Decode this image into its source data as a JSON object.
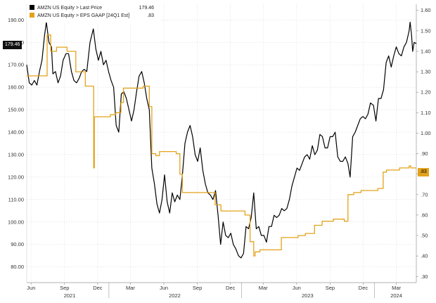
{
  "chart_data": {
    "type": "line",
    "legend": [
      {
        "label": "AMZN US Equity > Last Price",
        "value": "179.46",
        "color": "#000000"
      },
      {
        "label": "AMZN US Equity > EPS GAAP [24Q1 Est]",
        "value": ".83",
        "color": "#e3a21a"
      }
    ],
    "left_axis": {
      "range": [
        73,
        197
      ],
      "ticks": [
        "190.00",
        "180.00",
        "170.00",
        "160.00",
        "150.00",
        "140.00",
        "130.00",
        "120.00",
        "110.00",
        "100.00",
        "90.00",
        "80.00"
      ],
      "tick_values": [
        190,
        180,
        170,
        160,
        150,
        140,
        130,
        120,
        110,
        100,
        90,
        80
      ],
      "last_value_badge": "179.46"
    },
    "right_axis": {
      "range": [
        0.27,
        1.63
      ],
      "ticks": [
        "1.60",
        "1.50",
        "1.40",
        "1.30",
        "1.20",
        "1.10",
        "1.00",
        ".90",
        ".80",
        ".70",
        ".60",
        ".50",
        ".40",
        ".30"
      ],
      "tick_values": [
        1.6,
        1.5,
        1.4,
        1.3,
        1.2,
        1.1,
        1.0,
        0.9,
        0.8,
        0.7,
        0.6,
        0.5,
        0.4,
        0.3
      ],
      "last_value_badge": ".83"
    },
    "x_axis": {
      "range": [
        "2021-05-20",
        "2024-04-25"
      ],
      "month_ticks": [
        {
          "label": "Jun",
          "date": "2021-06-01"
        },
        {
          "label": "Sep",
          "date": "2021-09-01"
        },
        {
          "label": "Dec",
          "date": "2021-12-01"
        },
        {
          "label": "Mar",
          "date": "2022-03-01"
        },
        {
          "label": "Jun",
          "date": "2022-06-01"
        },
        {
          "label": "Sep",
          "date": "2022-09-01"
        },
        {
          "label": "Dec",
          "date": "2022-12-01"
        },
        {
          "label": "Mar",
          "date": "2023-03-01"
        },
        {
          "label": "Jun",
          "date": "2023-06-01"
        },
        {
          "label": "Sep",
          "date": "2023-09-01"
        },
        {
          "label": "Dec",
          "date": "2023-12-01"
        },
        {
          "label": "Mar",
          "date": "2024-03-01"
        }
      ],
      "year_labels": [
        {
          "label": "2021",
          "date": "2021-09-15"
        },
        {
          "label": "2022",
          "date": "2022-07-01"
        },
        {
          "label": "2023",
          "date": "2023-07-01"
        },
        {
          "label": "2024",
          "date": "2024-03-01"
        }
      ],
      "year_boundaries": [
        "2022-01-01",
        "2023-01-01",
        "2024-01-01"
      ]
    },
    "grid": true,
    "series": [
      {
        "name": "AMZN US Equity > Last Price",
        "axis": "left",
        "color": "#000000",
        "points": [
          [
            "2021-05-20",
            170
          ],
          [
            "2021-05-27",
            162
          ],
          [
            "2021-06-03",
            161
          ],
          [
            "2021-06-10",
            163
          ],
          [
            "2021-06-17",
            161
          ],
          [
            "2021-06-24",
            167
          ],
          [
            "2021-07-01",
            172
          ],
          [
            "2021-07-08",
            183
          ],
          [
            "2021-07-13",
            189
          ],
          [
            "2021-07-20",
            180
          ],
          [
            "2021-07-27",
            178
          ],
          [
            "2021-07-31",
            166
          ],
          [
            "2021-08-07",
            167
          ],
          [
            "2021-08-14",
            162
          ],
          [
            "2021-08-21",
            165
          ],
          [
            "2021-08-28",
            172
          ],
          [
            "2021-09-05",
            175
          ],
          [
            "2021-09-12",
            175
          ],
          [
            "2021-09-20",
            167
          ],
          [
            "2021-09-27",
            163
          ],
          [
            "2021-10-04",
            162
          ],
          [
            "2021-10-11",
            164
          ],
          [
            "2021-10-18",
            167
          ],
          [
            "2021-10-25",
            168
          ],
          [
            "2021-11-01",
            167
          ],
          [
            "2021-11-10",
            180
          ],
          [
            "2021-11-19",
            186
          ],
          [
            "2021-11-26",
            177
          ],
          [
            "2021-12-03",
            172
          ],
          [
            "2021-12-10",
            176
          ],
          [
            "2021-12-17",
            170
          ],
          [
            "2021-12-24",
            172
          ],
          [
            "2021-12-31",
            167
          ],
          [
            "2022-01-07",
            163
          ],
          [
            "2022-01-14",
            160
          ],
          [
            "2022-01-21",
            143
          ],
          [
            "2022-01-28",
            140
          ],
          [
            "2022-02-04",
            157
          ],
          [
            "2022-02-11",
            158
          ],
          [
            "2022-02-18",
            155
          ],
          [
            "2022-02-25",
            150
          ],
          [
            "2022-03-04",
            145
          ],
          [
            "2022-03-11",
            150
          ],
          [
            "2022-03-18",
            158
          ],
          [
            "2022-03-25",
            165
          ],
          [
            "2022-04-01",
            167
          ],
          [
            "2022-04-08",
            162
          ],
          [
            "2022-04-15",
            155
          ],
          [
            "2022-04-22",
            150
          ],
          [
            "2022-04-29",
            124
          ],
          [
            "2022-05-06",
            117
          ],
          [
            "2022-05-13",
            108
          ],
          [
            "2022-05-20",
            104
          ],
          [
            "2022-05-27",
            110
          ],
          [
            "2022-06-03",
            121
          ],
          [
            "2022-06-10",
            109
          ],
          [
            "2022-06-17",
            104
          ],
          [
            "2022-06-24",
            113
          ],
          [
            "2022-07-01",
            109
          ],
          [
            "2022-07-08",
            112
          ],
          [
            "2022-07-15",
            110
          ],
          [
            "2022-07-22",
            121
          ],
          [
            "2022-07-29",
            135
          ],
          [
            "2022-08-05",
            140
          ],
          [
            "2022-08-12",
            143
          ],
          [
            "2022-08-19",
            138
          ],
          [
            "2022-08-26",
            130
          ],
          [
            "2022-09-02",
            127
          ],
          [
            "2022-09-09",
            133
          ],
          [
            "2022-09-16",
            123
          ],
          [
            "2022-09-23",
            117
          ],
          [
            "2022-09-30",
            113
          ],
          [
            "2022-10-07",
            112
          ],
          [
            "2022-10-14",
            110
          ],
          [
            "2022-10-21",
            114
          ],
          [
            "2022-10-28",
            103
          ],
          [
            "2022-11-04",
            90
          ],
          [
            "2022-11-11",
            100
          ],
          [
            "2022-11-18",
            94
          ],
          [
            "2022-11-25",
            93
          ],
          [
            "2022-12-02",
            95
          ],
          [
            "2022-12-09",
            90
          ],
          [
            "2022-12-16",
            88
          ],
          [
            "2022-12-23",
            85
          ],
          [
            "2022-12-30",
            84
          ],
          [
            "2023-01-06",
            86
          ],
          [
            "2023-01-13",
            98
          ],
          [
            "2023-01-20",
            97
          ],
          [
            "2023-01-27",
            102
          ],
          [
            "2023-02-03",
            113
          ],
          [
            "2023-02-10",
            97
          ],
          [
            "2023-02-17",
            98
          ],
          [
            "2023-02-24",
            94
          ],
          [
            "2023-03-03",
            94
          ],
          [
            "2023-03-10",
            91
          ],
          [
            "2023-03-17",
            98
          ],
          [
            "2023-03-24",
            98
          ],
          [
            "2023-03-31",
            103
          ],
          [
            "2023-04-07",
            102
          ],
          [
            "2023-04-14",
            103
          ],
          [
            "2023-04-21",
            106
          ],
          [
            "2023-04-28",
            105
          ],
          [
            "2023-05-05",
            106
          ],
          [
            "2023-05-12",
            110
          ],
          [
            "2023-05-19",
            116
          ],
          [
            "2023-05-26",
            120
          ],
          [
            "2023-06-02",
            124
          ],
          [
            "2023-06-09",
            123
          ],
          [
            "2023-06-16",
            126
          ],
          [
            "2023-06-23",
            129
          ],
          [
            "2023-06-30",
            130
          ],
          [
            "2023-07-07",
            128
          ],
          [
            "2023-07-14",
            134
          ],
          [
            "2023-07-21",
            130
          ],
          [
            "2023-07-28",
            132
          ],
          [
            "2023-08-04",
            139
          ],
          [
            "2023-08-11",
            138
          ],
          [
            "2023-08-18",
            133
          ],
          [
            "2023-08-25",
            133
          ],
          [
            "2023-09-01",
            138
          ],
          [
            "2023-09-08",
            138
          ],
          [
            "2023-09-15",
            140
          ],
          [
            "2023-09-22",
            129
          ],
          [
            "2023-09-29",
            127
          ],
          [
            "2023-10-06",
            127
          ],
          [
            "2023-10-13",
            129
          ],
          [
            "2023-10-20",
            126
          ],
          [
            "2023-10-26",
            120
          ],
          [
            "2023-11-02",
            138
          ],
          [
            "2023-11-09",
            140
          ],
          [
            "2023-11-16",
            143
          ],
          [
            "2023-11-23",
            146
          ],
          [
            "2023-11-30",
            147
          ],
          [
            "2023-12-07",
            146
          ],
          [
            "2023-12-14",
            148
          ],
          [
            "2023-12-21",
            153
          ],
          [
            "2023-12-29",
            152
          ],
          [
            "2024-01-05",
            145
          ],
          [
            "2024-01-12",
            155
          ],
          [
            "2024-01-19",
            155
          ],
          [
            "2024-01-26",
            159
          ],
          [
            "2024-02-02",
            171
          ],
          [
            "2024-02-09",
            174
          ],
          [
            "2024-02-16",
            169
          ],
          [
            "2024-02-23",
            174
          ],
          [
            "2024-03-01",
            178
          ],
          [
            "2024-03-08",
            175
          ],
          [
            "2024-03-15",
            174
          ],
          [
            "2024-03-22",
            178
          ],
          [
            "2024-03-29",
            180
          ],
          [
            "2024-04-05",
            185
          ],
          [
            "2024-04-08",
            189
          ],
          [
            "2024-04-12",
            183
          ],
          [
            "2024-04-15",
            176
          ],
          [
            "2024-04-19",
            180
          ],
          [
            "2024-04-25",
            179.46
          ]
        ]
      },
      {
        "name": "AMZN US Equity > EPS GAAP [24Q1 Est]",
        "axis": "right",
        "color": "#e3a21a",
        "points": [
          [
            "2021-05-20",
            1.28
          ],
          [
            "2021-07-15",
            1.28
          ],
          [
            "2021-07-15",
            1.48
          ],
          [
            "2021-07-25",
            1.48
          ],
          [
            "2021-07-25",
            1.4
          ],
          [
            "2021-08-10",
            1.4
          ],
          [
            "2021-08-10",
            1.42
          ],
          [
            "2021-09-08",
            1.42
          ],
          [
            "2021-09-08",
            1.4
          ],
          [
            "2021-10-02",
            1.4
          ],
          [
            "2021-10-02",
            1.3
          ],
          [
            "2021-10-28",
            1.3
          ],
          [
            "2021-10-28",
            1.23
          ],
          [
            "2021-11-20",
            1.23
          ],
          [
            "2021-11-20",
            0.83
          ],
          [
            "2021-11-22",
            0.83
          ],
          [
            "2021-11-22",
            1.08
          ],
          [
            "2022-01-05",
            1.08
          ],
          [
            "2022-01-05",
            1.09
          ],
          [
            "2022-01-20",
            1.09
          ],
          [
            "2022-01-20",
            1.1
          ],
          [
            "2022-02-03",
            1.1
          ],
          [
            "2022-02-03",
            1.15
          ],
          [
            "2022-02-10",
            1.15
          ],
          [
            "2022-02-10",
            1.22
          ],
          [
            "2022-04-05",
            1.22
          ],
          [
            "2022-04-05",
            1.23
          ],
          [
            "2022-04-22",
            1.23
          ],
          [
            "2022-04-22",
            1.13
          ],
          [
            "2022-04-29",
            1.13
          ],
          [
            "2022-04-29",
            0.9
          ],
          [
            "2022-05-10",
            0.9
          ],
          [
            "2022-05-10",
            0.89
          ],
          [
            "2022-05-20",
            0.89
          ],
          [
            "2022-05-20",
            0.91
          ],
          [
            "2022-07-05",
            0.91
          ],
          [
            "2022-07-05",
            0.9
          ],
          [
            "2022-07-15",
            0.9
          ],
          [
            "2022-07-15",
            0.8
          ],
          [
            "2022-07-22",
            0.8
          ],
          [
            "2022-07-22",
            0.71
          ],
          [
            "2022-10-20",
            0.71
          ],
          [
            "2022-10-20",
            0.65
          ],
          [
            "2022-11-05",
            0.65
          ],
          [
            "2022-11-05",
            0.62
          ],
          [
            "2023-01-10",
            0.62
          ],
          [
            "2023-01-10",
            0.6
          ],
          [
            "2023-01-24",
            0.6
          ],
          [
            "2023-01-24",
            0.47
          ],
          [
            "2023-02-03",
            0.47
          ],
          [
            "2023-02-03",
            0.4
          ],
          [
            "2023-02-07",
            0.4
          ],
          [
            "2023-02-07",
            0.42
          ],
          [
            "2023-02-20",
            0.42
          ],
          [
            "2023-02-20",
            0.43
          ],
          [
            "2023-04-20",
            0.43
          ],
          [
            "2023-04-20",
            0.49
          ],
          [
            "2023-06-05",
            0.49
          ],
          [
            "2023-06-05",
            0.5
          ],
          [
            "2023-06-25",
            0.5
          ],
          [
            "2023-06-25",
            0.51
          ],
          [
            "2023-07-20",
            0.51
          ],
          [
            "2023-07-20",
            0.55
          ],
          [
            "2023-08-10",
            0.55
          ],
          [
            "2023-08-10",
            0.57
          ],
          [
            "2023-09-10",
            0.57
          ],
          [
            "2023-09-10",
            0.58
          ],
          [
            "2023-10-10",
            0.58
          ],
          [
            "2023-10-10",
            0.57
          ],
          [
            "2023-10-20",
            0.57
          ],
          [
            "2023-10-20",
            0.7
          ],
          [
            "2023-11-05",
            0.7
          ],
          [
            "2023-11-05",
            0.71
          ],
          [
            "2023-11-25",
            0.71
          ],
          [
            "2023-11-25",
            0.72
          ],
          [
            "2024-01-10",
            0.72
          ],
          [
            "2024-01-10",
            0.73
          ],
          [
            "2024-01-25",
            0.73
          ],
          [
            "2024-01-25",
            0.81
          ],
          [
            "2024-02-03",
            0.81
          ],
          [
            "2024-02-03",
            0.82
          ],
          [
            "2024-03-10",
            0.82
          ],
          [
            "2024-03-10",
            0.83
          ],
          [
            "2024-04-05",
            0.83
          ],
          [
            "2024-04-05",
            0.84
          ],
          [
            "2024-04-10",
            0.84
          ],
          [
            "2024-04-10",
            0.83
          ],
          [
            "2024-04-25",
            0.83
          ]
        ]
      }
    ]
  }
}
